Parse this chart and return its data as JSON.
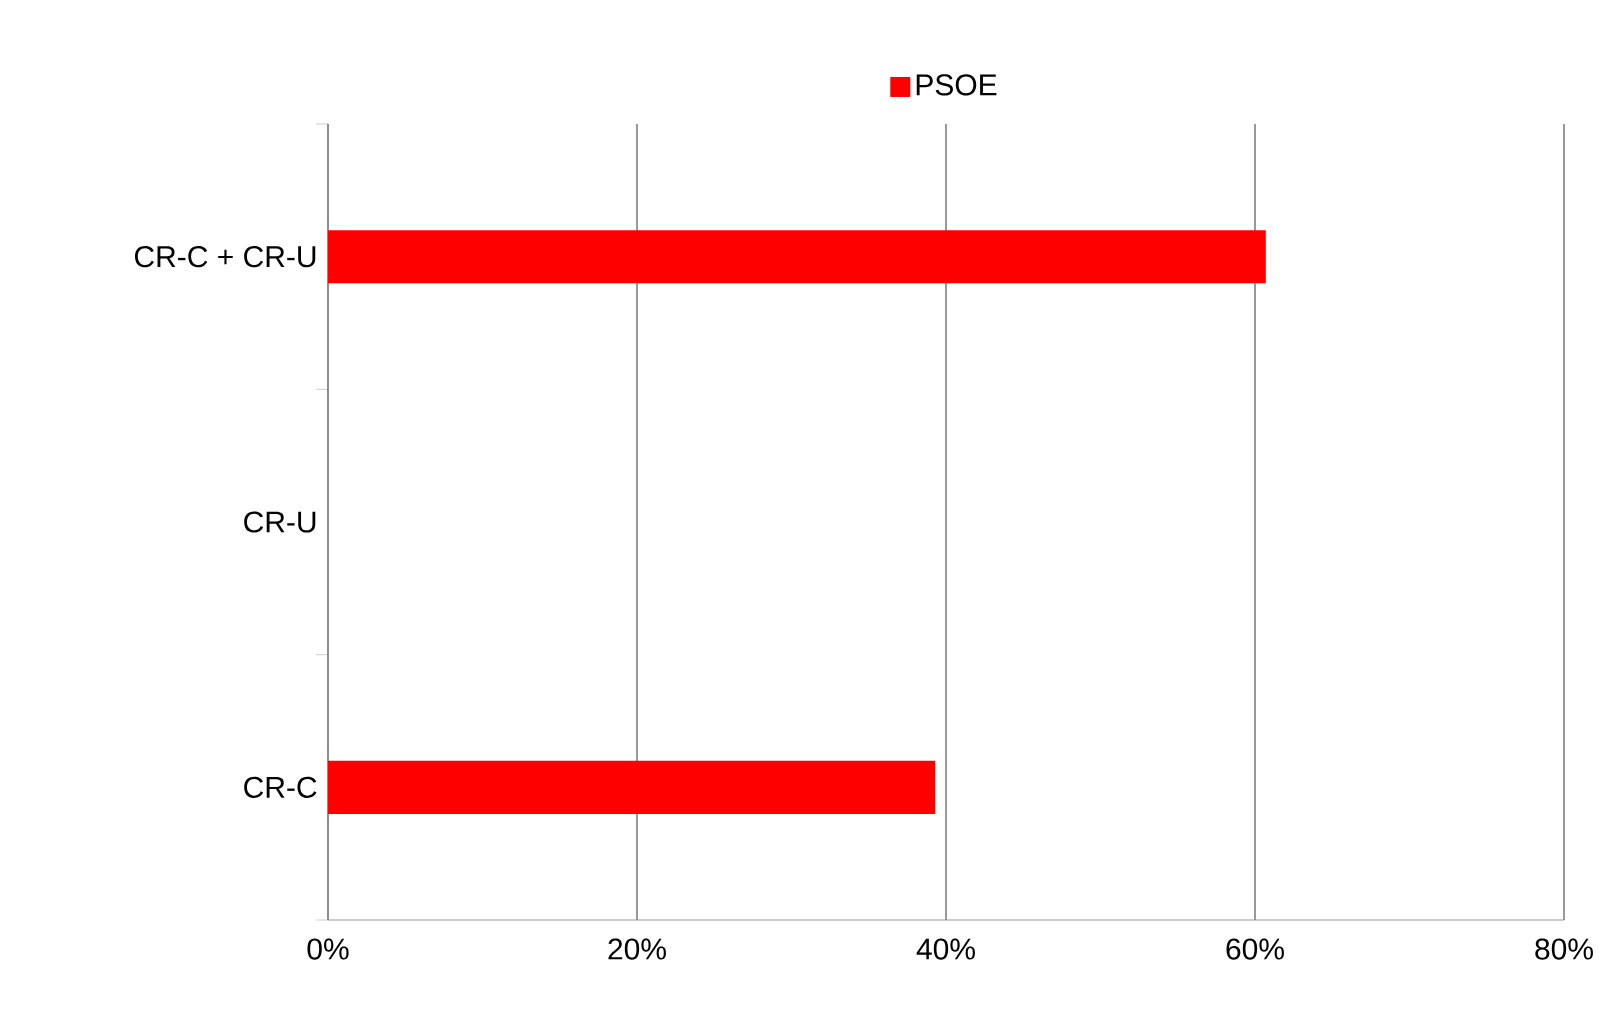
{
  "chart_data": {
    "type": "bar",
    "orientation": "horizontal",
    "categories": [
      "CR-C + CR-U",
      "CR-U",
      "CR-C"
    ],
    "series": [
      {
        "name": "PSOE",
        "color": "#ff0000",
        "values": [
          60.7,
          null,
          39.3
        ]
      }
    ],
    "xlim": [
      0,
      80
    ],
    "xticks": [
      {
        "value": 0,
        "label": "0%"
      },
      {
        "value": 20,
        "label": "20%"
      },
      {
        "value": 40,
        "label": "40%"
      },
      {
        "value": 60,
        "label": "60%"
      },
      {
        "value": 80,
        "label": "80%"
      }
    ],
    "grid": "x",
    "legend": "top"
  }
}
